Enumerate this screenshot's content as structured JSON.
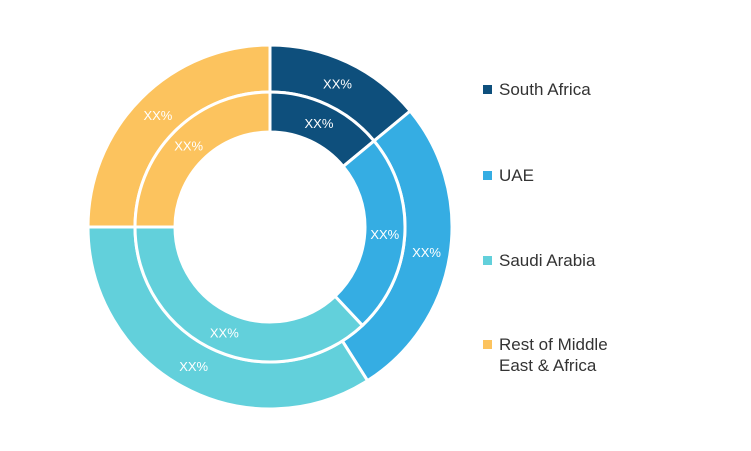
{
  "chart_data": {
    "type": "pie",
    "subtype": "double-donut",
    "categories": [
      "South Africa",
      "UAE",
      "Saudi Arabia",
      "Rest of Middle East & Africa"
    ],
    "colors": [
      "#0e4f7c",
      "#35ade3",
      "#62d0db",
      "#fcc35e"
    ],
    "series": [
      {
        "ring": "outer",
        "values": [
          14,
          27,
          34,
          25
        ],
        "labels": [
          "XX%",
          "XX%",
          "XX%",
          "XX%"
        ]
      },
      {
        "ring": "inner",
        "values": [
          14,
          24,
          37,
          25
        ],
        "labels": [
          "XX%",
          "XX%",
          "XX%",
          "XX%"
        ]
      }
    ],
    "legend_position": "right"
  },
  "legend": {
    "items": [
      {
        "label": "South Africa",
        "color": "#0e4f7c"
      },
      {
        "label": "UAE",
        "color": "#35ade3"
      },
      {
        "label": "Saudi Arabia",
        "color": "#62d0db"
      },
      {
        "label": "Rest of Middle\nEast & Africa",
        "color": "#fcc35e"
      }
    ]
  }
}
